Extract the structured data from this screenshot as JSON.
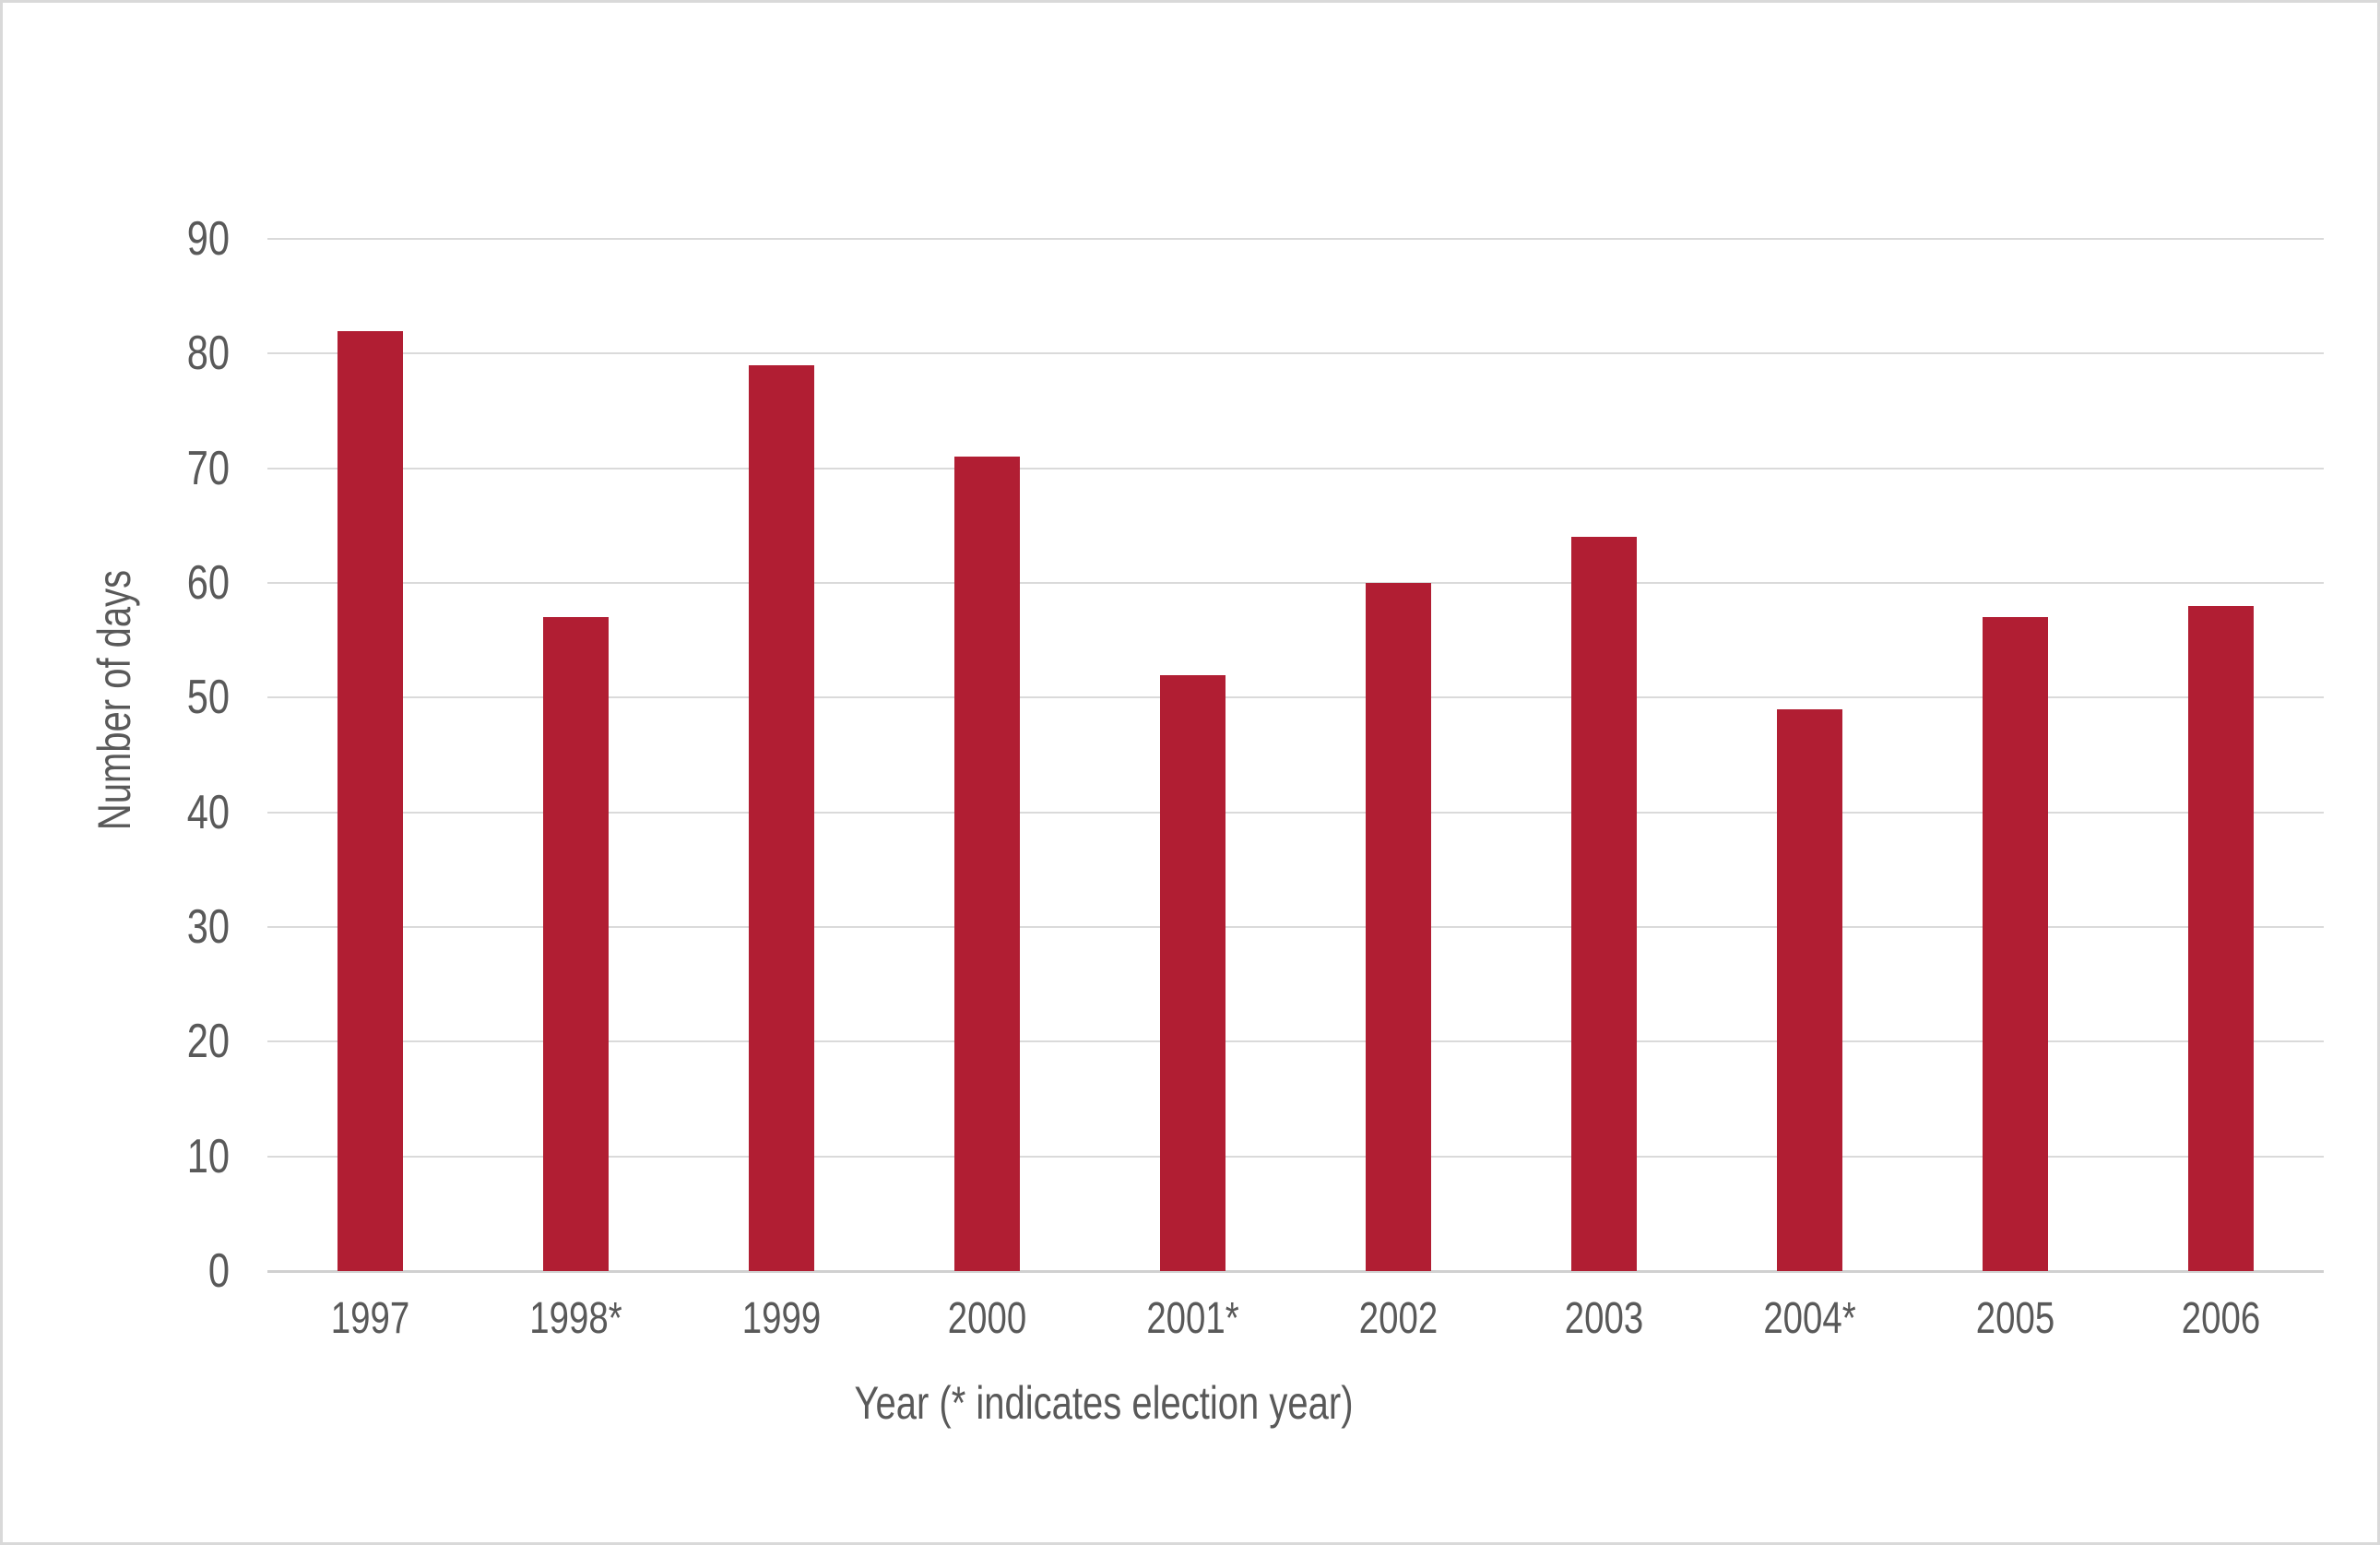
{
  "chart_data": {
    "type": "bar",
    "categories": [
      "1997",
      "1998*",
      "1999",
      "2000",
      "2001*",
      "2002",
      "2003",
      "2004*",
      "2005",
      "2006"
    ],
    "values": [
      82,
      57,
      79,
      71,
      52,
      60,
      64,
      49,
      57,
      58
    ],
    "xlabel": "Year (* indicates election year)",
    "ylabel": "Number of days",
    "ylim": [
      0,
      90
    ],
    "yticks": [
      0,
      10,
      20,
      30,
      40,
      50,
      60,
      70,
      80,
      90
    ],
    "grid": true,
    "legend": false,
    "bar_color": "#B11E33",
    "gridline_color": "#DADADA",
    "baseline_color": "#D0D0D0",
    "text_color": "#595959",
    "frame_border_color": "#D9D9D9"
  }
}
